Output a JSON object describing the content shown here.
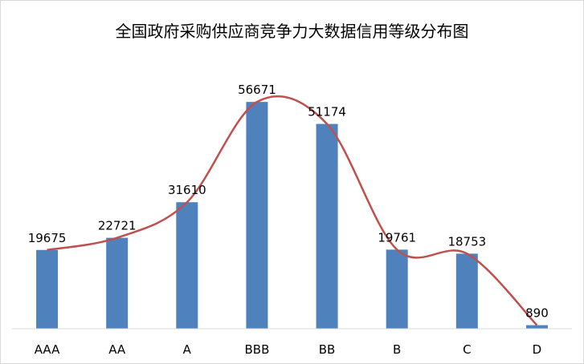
{
  "chart_data": {
    "type": "bar",
    "title": "全国政府采购供应商竞争力大数据信用等级分布图",
    "categories": [
      "AAA",
      "AA",
      "A",
      "BBB",
      "BB",
      "B",
      "C",
      "D"
    ],
    "values": [
      19675,
      22721,
      31610,
      56671,
      51174,
      19761,
      18753,
      890
    ],
    "overlay": "smoothed-line",
    "ylim": [
      0,
      60000
    ],
    "grid": false,
    "legend": "none",
    "bar_color": "#4f81bd",
    "line_color": "#c0504d"
  }
}
